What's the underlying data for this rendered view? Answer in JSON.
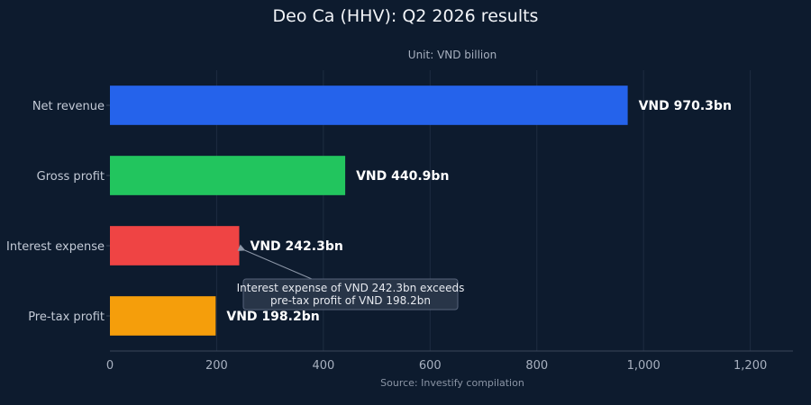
{
  "chart_data": {
    "type": "bar",
    "orientation": "horizontal",
    "title": "Deo Ca (HHV): Q2 2026 results",
    "subtitle": "Unit: VND billion",
    "source": "Source: Investify compilation",
    "categories": [
      "Net revenue",
      "Gross profit",
      "Interest expense",
      "Pre-tax profit"
    ],
    "values": [
      970.3,
      440.9,
      242.3,
      198.2
    ],
    "data_labels": [
      "VND 970.3bn",
      "VND 440.9bn",
      "VND 242.3bn",
      "VND 198.2bn"
    ],
    "colors": [
      "#2563eb",
      "#22c55e",
      "#ef4444",
      "#f59e0b"
    ],
    "xlim": [
      0,
      1280
    ],
    "xticks": [
      0,
      200,
      400,
      600,
      800,
      1000,
      1200
    ],
    "xtick_labels": [
      "0",
      "200",
      "400",
      "600",
      "800",
      "1,000",
      "1,200"
    ],
    "grid": true,
    "annotation": {
      "lines": [
        "Interest expense of VND 242.3bn exceeds",
        "pre-tax profit of VND 198.2bn"
      ],
      "target_category": "Interest expense",
      "target_value": 242.3
    }
  }
}
